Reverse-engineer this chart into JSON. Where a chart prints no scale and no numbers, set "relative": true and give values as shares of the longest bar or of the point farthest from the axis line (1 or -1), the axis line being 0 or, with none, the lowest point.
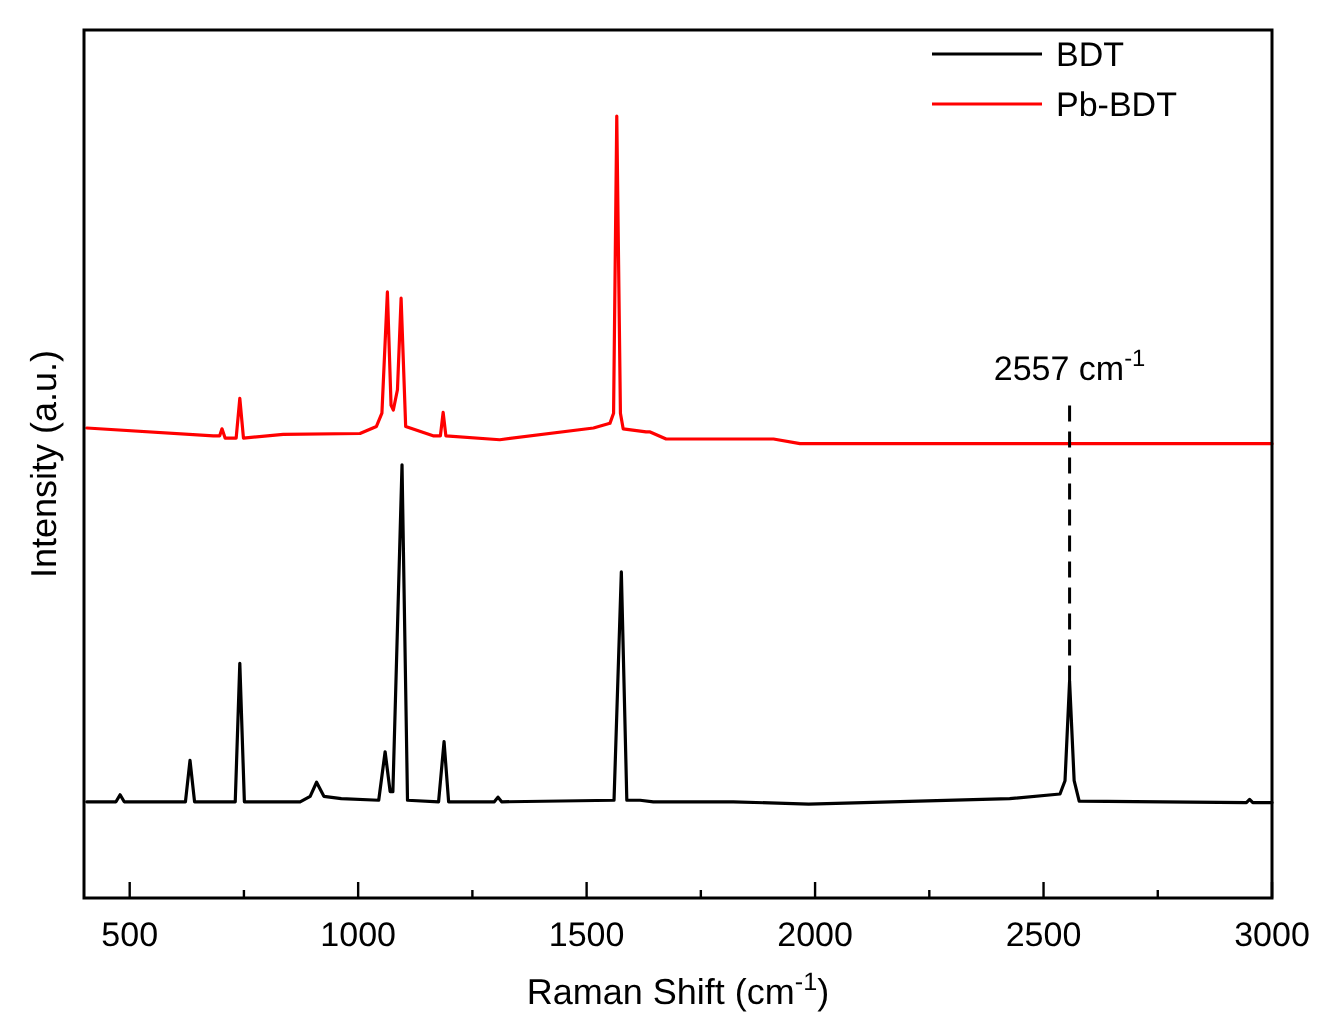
{
  "chart_data": {
    "type": "line",
    "relative": true,
    "xlabel": "Raman Shift (cm$^{-1}$)",
    "ylabel": "Intensity (a.u.)",
    "xlim": [
      400,
      3000
    ],
    "xticks": [
      500,
      {
        "value": 750,
        "label": null
      },
      1000,
      {
        "value": 1250,
        "label": null
      },
      1500,
      {
        "value": 1750,
        "label": null
      },
      2000,
      {
        "value": 2250,
        "label": null
      },
      2500,
      {
        "value": 2750,
        "label": null
      },
      3000
    ],
    "legend": "top right",
    "grid": false,
    "line_style": "solid",
    "ref_lines": [
      {
        "axis": "x",
        "value": 2557,
        "label": "2557 cm$^{-1}$",
        "line_style": "dashed",
        "color": "#000000"
      }
    ],
    "series": [
      {
        "name": "BDT",
        "color": "#000000",
        "x": [
          406,
          470,
          479,
          488,
          622,
          632,
          642,
          731,
          741,
          751,
          873,
          895,
          909,
          925,
          963,
          1045,
          1059,
          1070,
          1076,
          1096,
          1108,
          1176,
          1188,
          1198,
          1298,
          1306,
          1314,
          1560,
          1576,
          1588,
          1617,
          1646,
          1821,
          1986,
          2426,
          2536,
          2547,
          2557,
          2567,
          2578,
          2944,
          2951,
          2958,
          3000
        ],
        "values": [
          0.123,
          0.123,
          0.132,
          0.123,
          0.123,
          0.176,
          0.123,
          0.123,
          0.3,
          0.123,
          0.123,
          0.13,
          0.148,
          0.13,
          0.127,
          0.125,
          0.187,
          0.136,
          0.136,
          0.554,
          0.125,
          0.123,
          0.2,
          0.123,
          0.123,
          0.129,
          0.123,
          0.125,
          0.417,
          0.125,
          0.125,
          0.123,
          0.123,
          0.12,
          0.127,
          0.133,
          0.15,
          0.277,
          0.15,
          0.124,
          0.122,
          0.126,
          0.122,
          0.122
        ]
      },
      {
        "name": "Pb-BDT",
        "color": "#ff0000",
        "x": [
          406,
          683,
          697,
          702,
          709,
          733,
          741,
          749,
          836,
          1004,
          1040,
          1052,
          1064,
          1072,
          1077,
          1086,
          1094,
          1104,
          1164,
          1180,
          1186,
          1192,
          1310,
          1515,
          1551,
          1559,
          1566,
          1574,
          1580,
          1630,
          1639,
          1674,
          1909,
          1967,
          2550,
          3000
        ],
        "values": [
          0.601,
          0.591,
          0.591,
          0.6,
          0.588,
          0.588,
          0.639,
          0.588,
          0.593,
          0.594,
          0.603,
          0.62,
          0.775,
          0.63,
          0.624,
          0.65,
          0.767,
          0.603,
          0.591,
          0.591,
          0.621,
          0.591,
          0.586,
          0.601,
          0.607,
          0.62,
          1.0,
          0.62,
          0.6,
          0.596,
          0.596,
          0.587,
          0.587,
          0.581,
          0.581,
          0.581
        ]
      }
    ]
  }
}
